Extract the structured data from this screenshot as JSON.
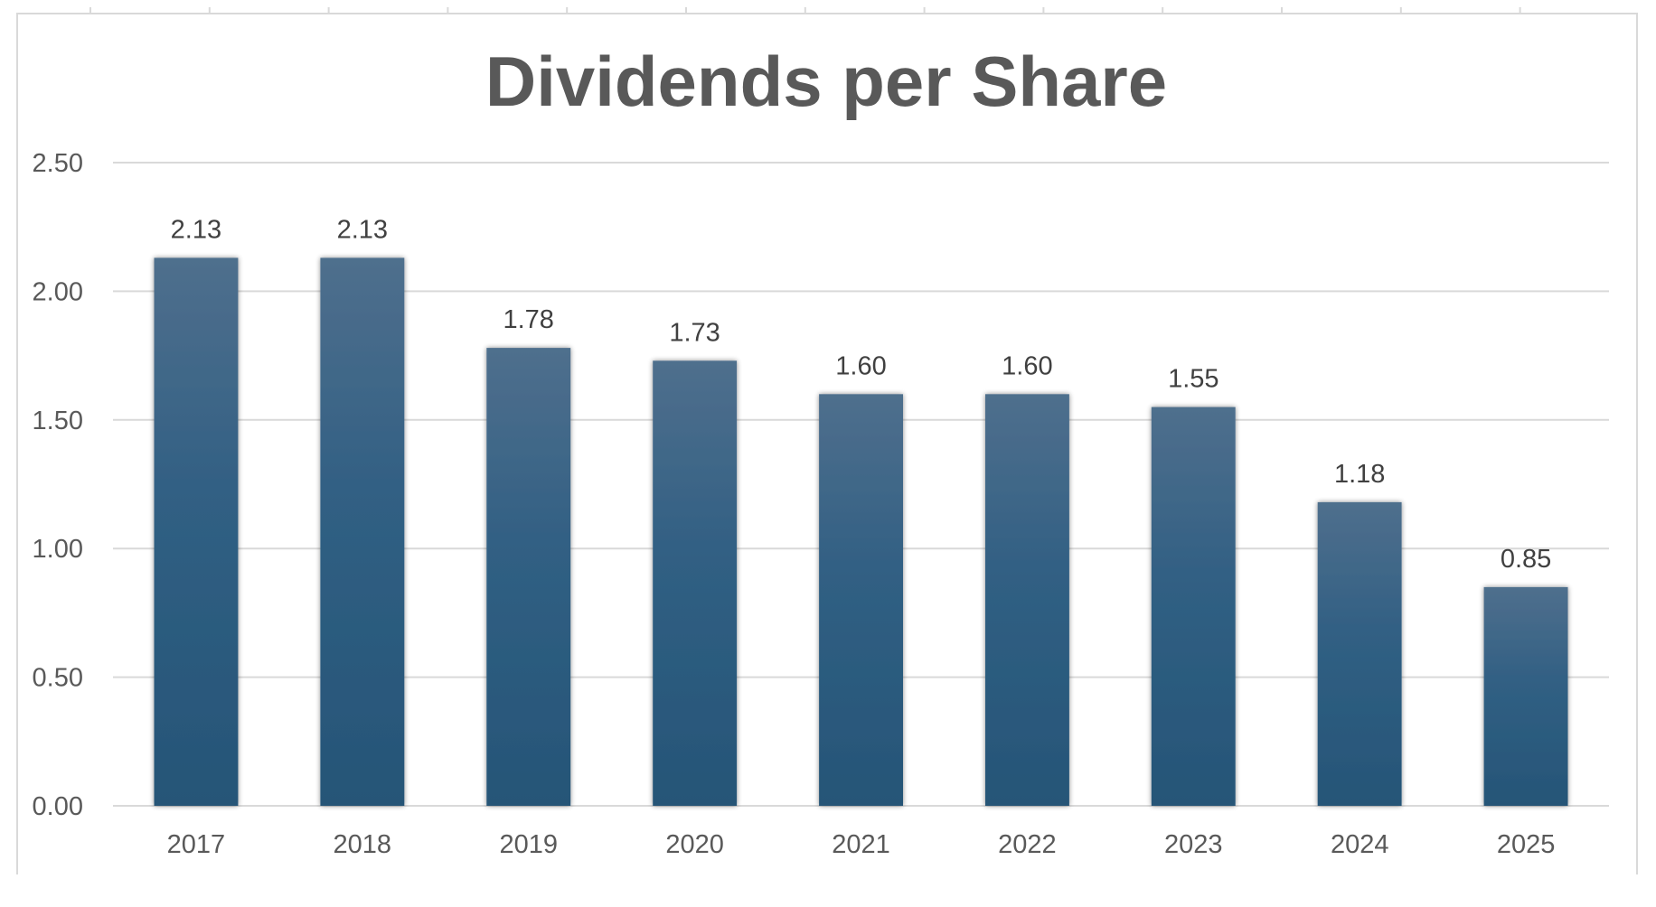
{
  "chart_data": {
    "type": "bar",
    "title": "Dividends per Share",
    "xlabel": "",
    "ylabel": "",
    "categories": [
      "2017",
      "2018",
      "2019",
      "2020",
      "2021",
      "2022",
      "2023",
      "2024",
      "2025"
    ],
    "values": [
      2.13,
      2.13,
      1.78,
      1.73,
      1.6,
      1.6,
      1.55,
      1.18,
      0.85
    ],
    "data_labels": [
      "2.13",
      "2.13",
      "1.78",
      "1.73",
      "1.60",
      "1.60",
      "1.55",
      "1.18",
      "0.85"
    ],
    "ylim": [
      0,
      2.5
    ],
    "yticks": [
      0,
      0.5,
      1.0,
      1.5,
      2.0,
      2.5
    ],
    "ytick_labels": [
      "0.00",
      "0.50",
      "1.00",
      "1.50",
      "2.00",
      "2.50"
    ],
    "grid": true,
    "legend": "none",
    "colors": {
      "bar_top": "#4f6f8d",
      "bar_mid": "#305f83",
      "bar_bottom": "#265577",
      "text": "#595959",
      "data_label": "#404040",
      "grid": "#d9d9d9"
    }
  }
}
